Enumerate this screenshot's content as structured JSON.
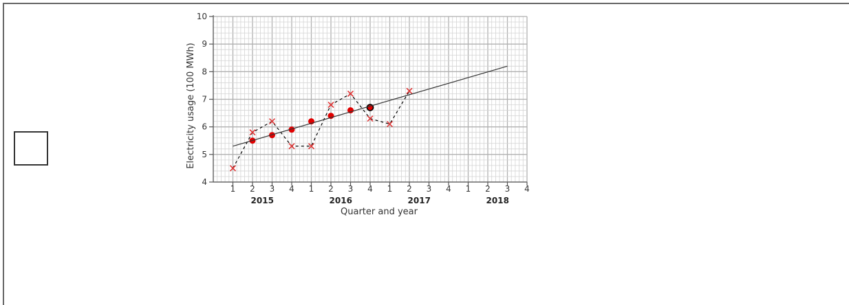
{
  "checkbox": {
    "checked": false
  },
  "chart_data": {
    "type": "scatter",
    "title": "",
    "xlabel": "Quarter and year",
    "ylabel": "Electricity usage (100 MWh)",
    "ylim": [
      4,
      10
    ],
    "yticks": [
      4,
      5,
      6,
      7,
      8,
      9,
      10
    ],
    "grid": true,
    "categories": [
      "1",
      "2",
      "3",
      "4",
      "1",
      "2",
      "3",
      "4",
      "1",
      "2",
      "3",
      "4",
      "1",
      "2",
      "3",
      "4"
    ],
    "years": [
      {
        "label": "2015",
        "quarters": [
          1,
          4
        ]
      },
      {
        "label": "2016",
        "quarters": [
          5,
          8
        ]
      },
      {
        "label": "2017",
        "quarters": [
          9,
          12
        ]
      },
      {
        "label": "2018",
        "quarters": [
          13,
          16
        ]
      }
    ],
    "series": [
      {
        "kind": "dashed-crosses",
        "color": "#e03030",
        "x": [
          1,
          2,
          3,
          4,
          5,
          6,
          7,
          8,
          9,
          10
        ],
        "values": [
          4.5,
          5.8,
          6.2,
          5.3,
          5.3,
          6.8,
          7.2,
          6.3,
          6.1,
          7.3
        ]
      },
      {
        "kind": "dots",
        "color": "#e00000",
        "x": [
          2,
          3,
          4,
          5,
          6,
          7,
          8
        ],
        "values": [
          5.5,
          5.7,
          5.9,
          6.2,
          6.4,
          6.6,
          6.7
        ]
      },
      {
        "kind": "trend-line",
        "color": "#333333",
        "x": [
          1,
          15
        ],
        "values": [
          5.3,
          8.2
        ]
      }
    ]
  }
}
